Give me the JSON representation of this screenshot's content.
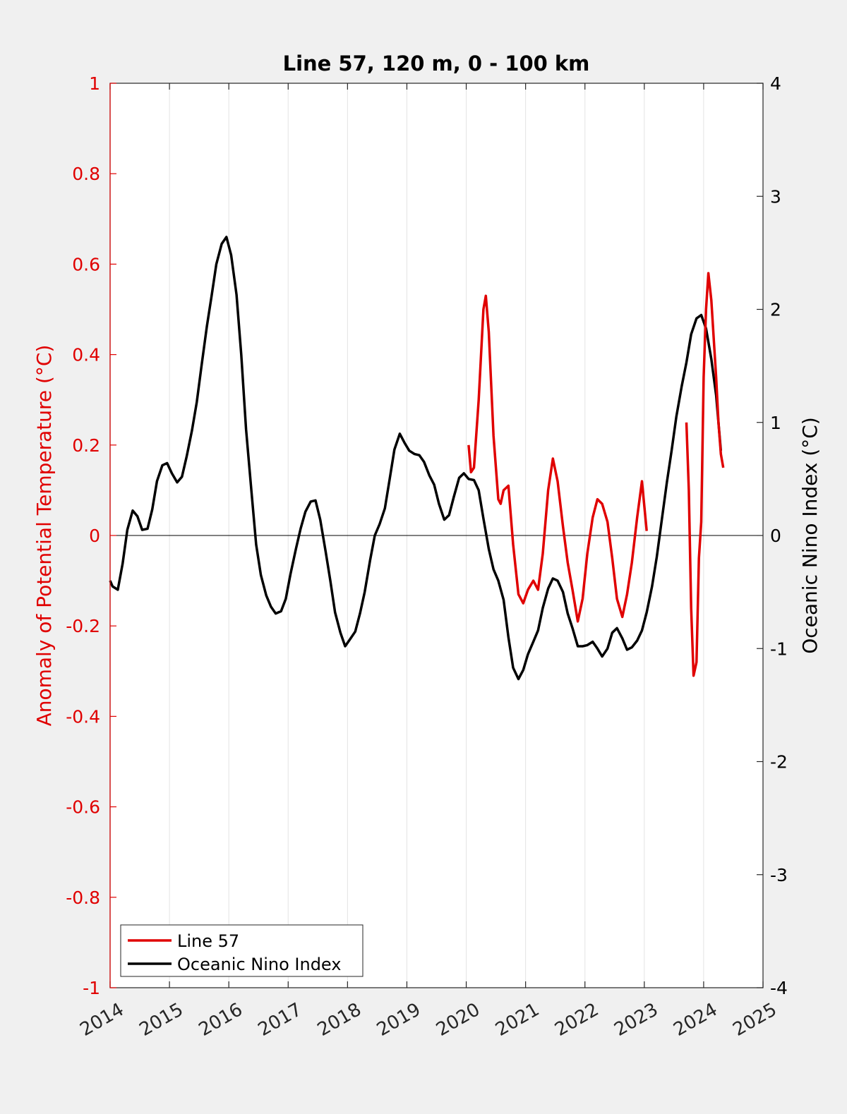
{
  "chart_data": {
    "type": "line",
    "title": "Line 57, 120 m, 0 - 100 km",
    "xlabel": "",
    "ylabel_left": "Anomaly of Potential Temperature (°C)",
    "ylabel_right": "Oceanic Nino Index (°C)",
    "xlim": [
      2014,
      2025
    ],
    "ylim_left": [
      -1,
      1
    ],
    "ylim_right": [
      -4,
      4
    ],
    "x_ticks": [
      "2014",
      "2015",
      "2016",
      "2017",
      "2018",
      "2019",
      "2020",
      "2021",
      "2022",
      "2023",
      "2024",
      "2025"
    ],
    "y_left_ticks": [
      "-1",
      "-0.8",
      "-0.6",
      "-0.4",
      "-0.2",
      "0",
      "0.2",
      "0.4",
      "0.6",
      "0.8",
      "1"
    ],
    "y_right_ticks": [
      "-4",
      "-3",
      "-2",
      "-1",
      "0",
      "1",
      "2",
      "3",
      "4"
    ],
    "grid": "vertical",
    "zero_line": true,
    "legend": {
      "position": "bottom-left",
      "entries": [
        "Line 57",
        "Oceanic Nino Index"
      ]
    },
    "colors": {
      "line57": "#e00000",
      "oni": "#000000",
      "left_axis": "#e00000",
      "right_axis": "#000000"
    },
    "series": [
      {
        "name": "Line 57",
        "axis": "left",
        "segments": [
          [
            [
              2020.04,
              0.2
            ],
            [
              2020.08,
              0.14
            ],
            [
              2020.13,
              0.15
            ],
            [
              2020.21,
              0.3
            ],
            [
              2020.29,
              0.5
            ],
            [
              2020.33,
              0.53
            ],
            [
              2020.38,
              0.45
            ],
            [
              2020.46,
              0.22
            ],
            [
              2020.54,
              0.08
            ],
            [
              2020.58,
              0.07
            ],
            [
              2020.63,
              0.1
            ],
            [
              2020.71,
              0.11
            ],
            [
              2020.79,
              -0.02
            ],
            [
              2020.88,
              -0.13
            ],
            [
              2020.96,
              -0.15
            ],
            [
              2021.04,
              -0.12
            ],
            [
              2021.13,
              -0.1
            ],
            [
              2021.21,
              -0.12
            ],
            [
              2021.29,
              -0.04
            ],
            [
              2021.38,
              0.1
            ],
            [
              2021.46,
              0.17
            ],
            [
              2021.54,
              0.12
            ],
            [
              2021.63,
              0.02
            ],
            [
              2021.71,
              -0.06
            ],
            [
              2021.79,
              -0.12
            ],
            [
              2021.88,
              -0.19
            ],
            [
              2021.96,
              -0.14
            ],
            [
              2022.04,
              -0.04
            ],
            [
              2022.13,
              0.04
            ],
            [
              2022.21,
              0.08
            ],
            [
              2022.29,
              0.07
            ],
            [
              2022.38,
              0.03
            ],
            [
              2022.46,
              -0.05
            ],
            [
              2022.54,
              -0.14
            ],
            [
              2022.63,
              -0.18
            ],
            [
              2022.71,
              -0.13
            ],
            [
              2022.79,
              -0.06
            ],
            [
              2022.88,
              0.04
            ],
            [
              2022.96,
              0.12
            ],
            [
              2023.04,
              0.01
            ]
          ],
          [
            [
              2023.71,
              0.25
            ],
            [
              2023.75,
              0.1
            ],
            [
              2023.79,
              -0.16
            ],
            [
              2023.83,
              -0.31
            ],
            [
              2023.88,
              -0.28
            ],
            [
              2023.92,
              -0.05
            ],
            [
              2023.96,
              0.03
            ],
            [
              2024.0,
              0.35
            ],
            [
              2024.04,
              0.5
            ],
            [
              2024.08,
              0.58
            ],
            [
              2024.13,
              0.52
            ],
            [
              2024.21,
              0.35
            ],
            [
              2024.25,
              0.25
            ],
            [
              2024.29,
              0.18
            ],
            [
              2024.33,
              0.15
            ]
          ]
        ]
      },
      {
        "name": "Oceanic Nino Index",
        "axis": "right",
        "points": [
          [
            2014.0,
            -0.4
          ],
          [
            2014.04,
            -0.45
          ],
          [
            2014.13,
            -0.48
          ],
          [
            2014.21,
            -0.25
          ],
          [
            2014.29,
            0.05
          ],
          [
            2014.38,
            0.22
          ],
          [
            2014.46,
            0.17
          ],
          [
            2014.54,
            0.05
          ],
          [
            2014.63,
            0.06
          ],
          [
            2014.71,
            0.23
          ],
          [
            2014.79,
            0.48
          ],
          [
            2014.88,
            0.62
          ],
          [
            2014.96,
            0.64
          ],
          [
            2015.04,
            0.55
          ],
          [
            2015.13,
            0.47
          ],
          [
            2015.21,
            0.52
          ],
          [
            2015.29,
            0.7
          ],
          [
            2015.38,
            0.93
          ],
          [
            2015.46,
            1.18
          ],
          [
            2015.54,
            1.5
          ],
          [
            2015.63,
            1.85
          ],
          [
            2015.71,
            2.12
          ],
          [
            2015.79,
            2.4
          ],
          [
            2015.88,
            2.58
          ],
          [
            2015.96,
            2.64
          ],
          [
            2016.04,
            2.48
          ],
          [
            2016.13,
            2.13
          ],
          [
            2016.21,
            1.6
          ],
          [
            2016.29,
            0.94
          ],
          [
            2016.38,
            0.4
          ],
          [
            2016.46,
            -0.08
          ],
          [
            2016.54,
            -0.35
          ],
          [
            2016.63,
            -0.53
          ],
          [
            2016.71,
            -0.63
          ],
          [
            2016.79,
            -0.69
          ],
          [
            2016.88,
            -0.67
          ],
          [
            2016.96,
            -0.56
          ],
          [
            2017.04,
            -0.34
          ],
          [
            2017.13,
            -0.12
          ],
          [
            2017.21,
            0.06
          ],
          [
            2017.29,
            0.21
          ],
          [
            2017.38,
            0.3
          ],
          [
            2017.46,
            0.31
          ],
          [
            2017.54,
            0.14
          ],
          [
            2017.63,
            -0.14
          ],
          [
            2017.71,
            -0.4
          ],
          [
            2017.79,
            -0.68
          ],
          [
            2017.88,
            -0.86
          ],
          [
            2017.96,
            -0.98
          ],
          [
            2018.04,
            -0.92
          ],
          [
            2018.13,
            -0.85
          ],
          [
            2018.21,
            -0.69
          ],
          [
            2018.29,
            -0.5
          ],
          [
            2018.38,
            -0.22
          ],
          [
            2018.46,
            0.0
          ],
          [
            2018.54,
            0.1
          ],
          [
            2018.63,
            0.24
          ],
          [
            2018.71,
            0.5
          ],
          [
            2018.79,
            0.76
          ],
          [
            2018.88,
            0.9
          ],
          [
            2018.96,
            0.82
          ],
          [
            2019.04,
            0.75
          ],
          [
            2019.13,
            0.72
          ],
          [
            2019.21,
            0.71
          ],
          [
            2019.29,
            0.65
          ],
          [
            2019.38,
            0.53
          ],
          [
            2019.46,
            0.45
          ],
          [
            2019.54,
            0.28
          ],
          [
            2019.63,
            0.14
          ],
          [
            2019.71,
            0.18
          ],
          [
            2019.79,
            0.34
          ],
          [
            2019.88,
            0.51
          ],
          [
            2019.96,
            0.55
          ],
          [
            2020.04,
            0.5
          ],
          [
            2020.13,
            0.49
          ],
          [
            2020.21,
            0.4
          ],
          [
            2020.29,
            0.15
          ],
          [
            2020.38,
            -0.12
          ],
          [
            2020.46,
            -0.3
          ],
          [
            2020.54,
            -0.4
          ],
          [
            2020.63,
            -0.57
          ],
          [
            2020.71,
            -0.9
          ],
          [
            2020.79,
            -1.17
          ],
          [
            2020.88,
            -1.27
          ],
          [
            2020.96,
            -1.19
          ],
          [
            2021.04,
            -1.05
          ],
          [
            2021.13,
            -0.94
          ],
          [
            2021.21,
            -0.84
          ],
          [
            2021.29,
            -0.64
          ],
          [
            2021.38,
            -0.47
          ],
          [
            2021.46,
            -0.38
          ],
          [
            2021.54,
            -0.4
          ],
          [
            2021.63,
            -0.5
          ],
          [
            2021.71,
            -0.69
          ],
          [
            2021.79,
            -0.82
          ],
          [
            2021.88,
            -0.98
          ],
          [
            2021.96,
            -0.98
          ],
          [
            2022.04,
            -0.97
          ],
          [
            2022.13,
            -0.94
          ],
          [
            2022.21,
            -1.0
          ],
          [
            2022.29,
            -1.07
          ],
          [
            2022.38,
            -1.0
          ],
          [
            2022.46,
            -0.86
          ],
          [
            2022.54,
            -0.82
          ],
          [
            2022.63,
            -0.91
          ],
          [
            2022.71,
            -1.01
          ],
          [
            2022.79,
            -0.99
          ],
          [
            2022.88,
            -0.93
          ],
          [
            2022.96,
            -0.84
          ],
          [
            2023.04,
            -0.68
          ],
          [
            2023.13,
            -0.45
          ],
          [
            2023.21,
            -0.19
          ],
          [
            2023.29,
            0.12
          ],
          [
            2023.38,
            0.47
          ],
          [
            2023.46,
            0.75
          ],
          [
            2023.54,
            1.05
          ],
          [
            2023.63,
            1.32
          ],
          [
            2023.71,
            1.53
          ],
          [
            2023.79,
            1.78
          ],
          [
            2023.88,
            1.92
          ],
          [
            2023.96,
            1.95
          ],
          [
            2024.04,
            1.83
          ],
          [
            2024.13,
            1.56
          ],
          [
            2024.21,
            1.24
          ],
          [
            2024.29,
            0.75
          ]
        ]
      }
    ]
  }
}
